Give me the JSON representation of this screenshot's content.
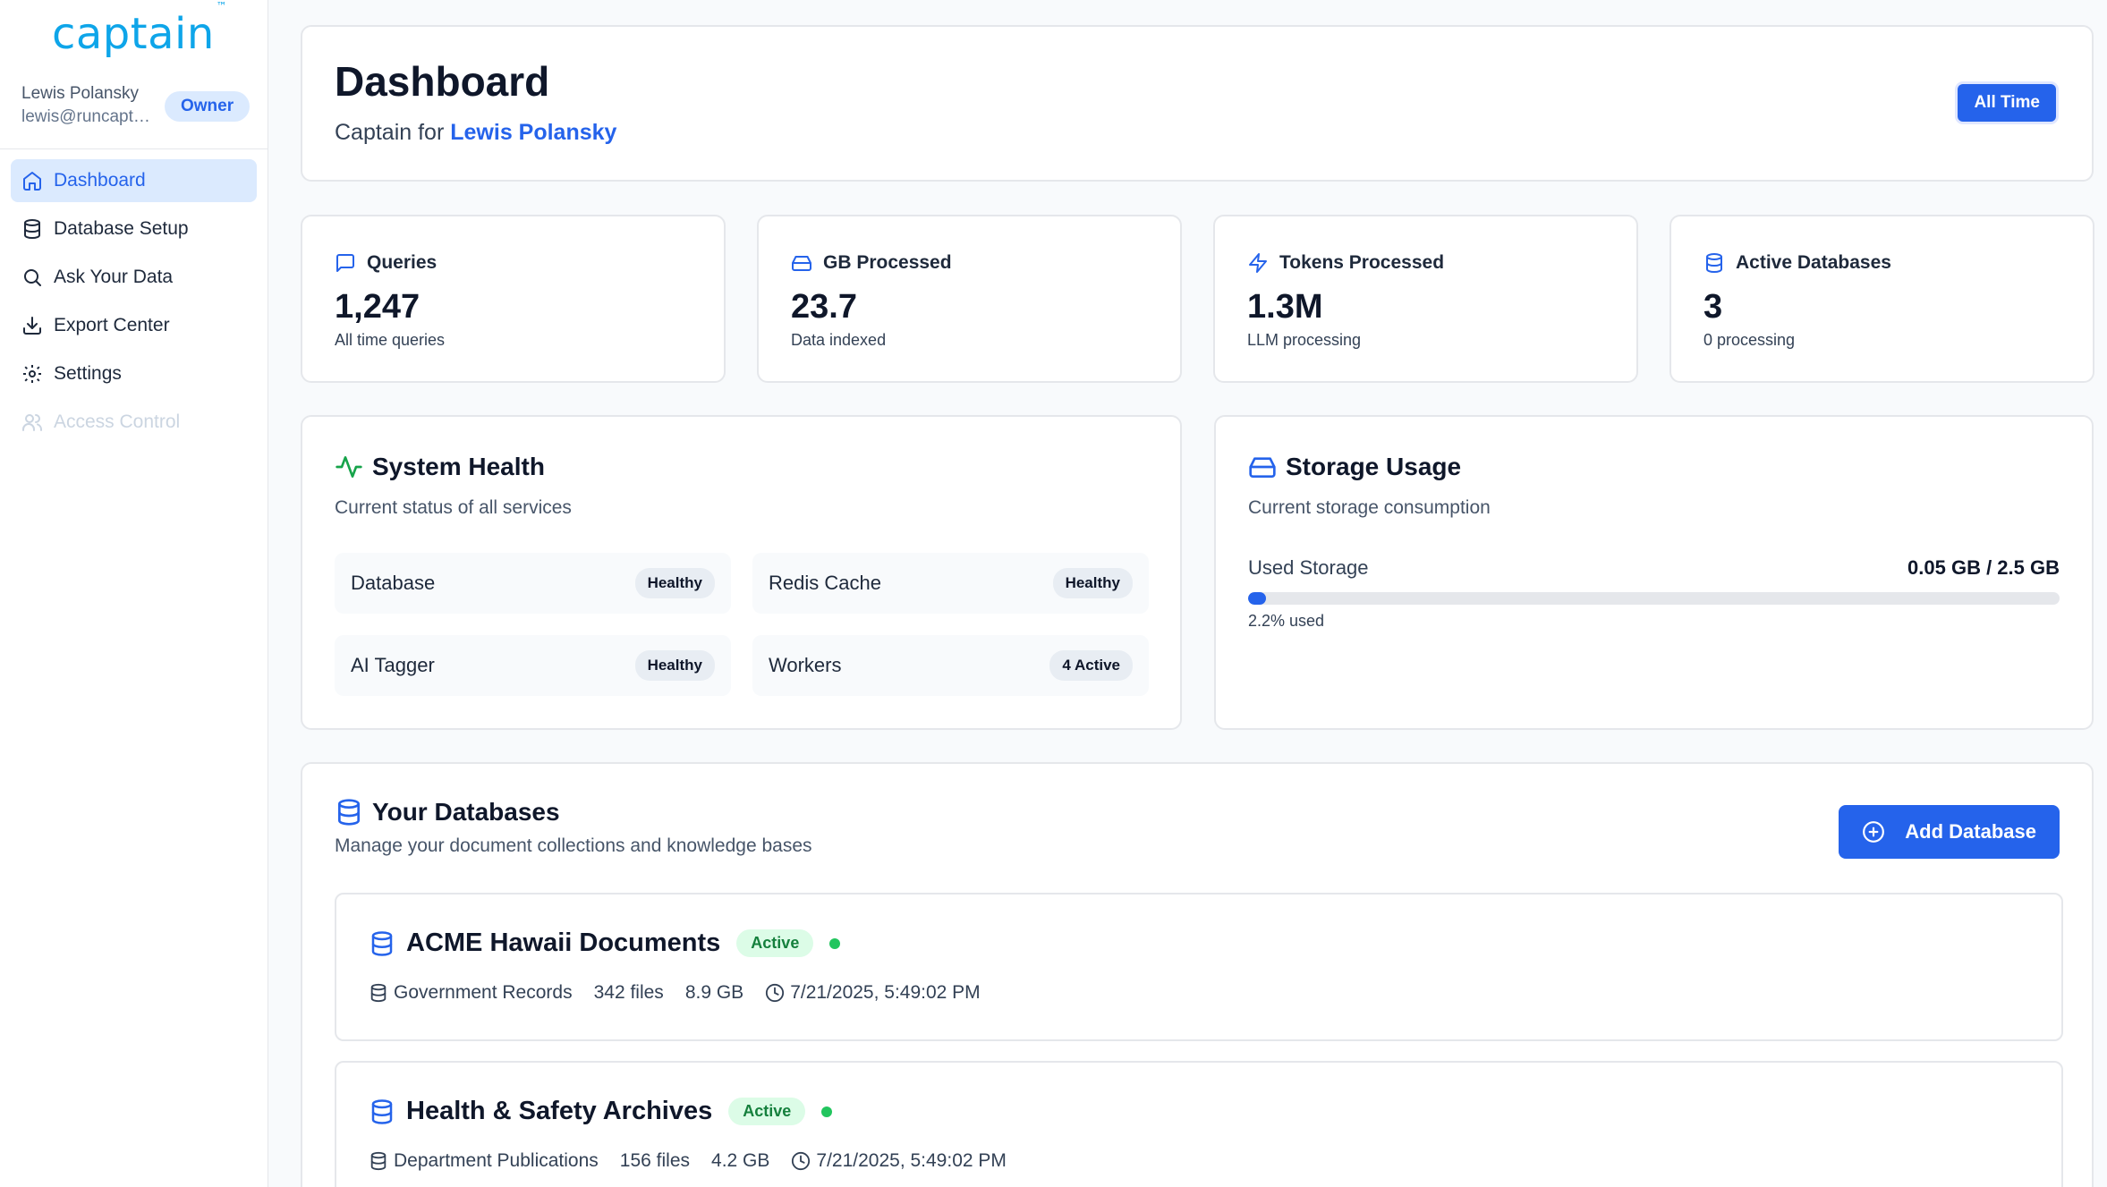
{
  "brand": {
    "name": "captain",
    "tm": "™"
  },
  "user": {
    "name": "Lewis Polansky",
    "email": "lewis@runcaptain.com",
    "role": "Owner"
  },
  "nav": [
    {
      "label": "Dashboard",
      "icon": "home-icon",
      "active": true
    },
    {
      "label": "Database Setup",
      "icon": "database-icon"
    },
    {
      "label": "Ask Your Data",
      "icon": "search-icon"
    },
    {
      "label": "Export Center",
      "icon": "download-icon"
    },
    {
      "label": "Settings",
      "icon": "gear-icon"
    },
    {
      "label": "Access Control",
      "icon": "users-icon",
      "disabled": true
    }
  ],
  "header": {
    "title": "Dashboard",
    "subtitle_prefix": "Captain for",
    "subtitle_owner": "Lewis Polansky",
    "range_button": "All Time"
  },
  "stats": [
    {
      "label": "Queries",
      "value": "1,247",
      "desc": "All time queries",
      "icon": "message-icon"
    },
    {
      "label": "GB Processed",
      "value": "23.7",
      "desc": "Data indexed",
      "icon": "hard-drive-icon"
    },
    {
      "label": "Tokens Processed",
      "value": "1.3M",
      "desc": "LLM processing",
      "icon": "zap-icon"
    },
    {
      "label": "Active Databases",
      "value": "3",
      "desc": "0 processing",
      "icon": "database-icon"
    }
  ],
  "health": {
    "title": "System Health",
    "subtitle": "Current status of all services",
    "services": [
      {
        "name": "Database",
        "status": "Healthy"
      },
      {
        "name": "Redis Cache",
        "status": "Healthy"
      },
      {
        "name": "AI Tagger",
        "status": "Healthy"
      },
      {
        "name": "Workers",
        "status": "4 Active"
      }
    ]
  },
  "storage": {
    "title": "Storage Usage",
    "subtitle": "Current storage consumption",
    "label": "Used Storage",
    "value": "0.05 GB / 2.5 GB",
    "used_percent": 2.2,
    "used_text": "2.2% used"
  },
  "databases": {
    "title": "Your Databases",
    "subtitle": "Manage your document collections and knowledge bases",
    "add_button": "Add Database",
    "items": [
      {
        "name": "ACME Hawaii Documents",
        "status": "Active",
        "category": "Government Records",
        "files": "342 files",
        "size": "8.9 GB",
        "updated": "7/21/2025, 5:49:02 PM"
      },
      {
        "name": "Health & Safety Archives",
        "status": "Active",
        "category": "Department Publications",
        "files": "156 files",
        "size": "4.2 GB",
        "updated": "7/21/2025, 5:49:02 PM"
      }
    ]
  },
  "colors": {
    "accent": "#2563eb",
    "success": "#22c55e",
    "brand": "#0ea5e9"
  }
}
